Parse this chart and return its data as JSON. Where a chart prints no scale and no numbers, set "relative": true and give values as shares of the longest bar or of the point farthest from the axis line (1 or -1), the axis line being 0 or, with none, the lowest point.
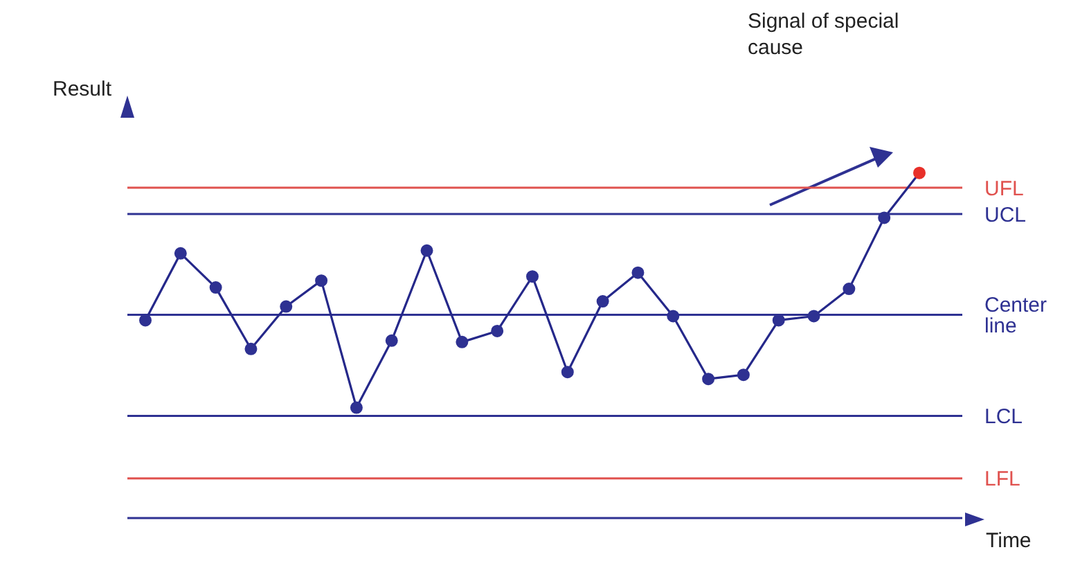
{
  "chart_data": {
    "type": "line",
    "relative": true,
    "ylabel": "Result",
    "xlabel": "Time",
    "annotations": [
      "Signal of special cause"
    ],
    "categories": [
      null,
      null,
      null,
      null,
      null,
      null,
      null,
      null,
      null,
      null,
      null,
      null,
      null,
      null,
      null,
      null,
      null,
      null,
      null,
      null,
      null,
      null,
      null
    ],
    "series": [
      {
        "color": "#25288a",
        "values": [
          0.573,
          0.767,
          0.668,
          0.49,
          0.613,
          0.688,
          0.32,
          0.514,
          0.775,
          0.51,
          0.542,
          0.7,
          0.423,
          0.628,
          0.711,
          0.585,
          0.403,
          0.415,
          0.573,
          0.585,
          0.664,
          0.87,
          1
        ],
        "colors": [
          "#2e3192",
          "#2e3192",
          "#2e3192",
          "#2e3192",
          "#2e3192",
          "#2e3192",
          "#2e3192",
          "#2e3192",
          "#2e3192",
          "#2e3192",
          "#2e3192",
          "#2e3192",
          "#2e3192",
          "#2e3192",
          "#2e3192",
          "#2e3192",
          "#2e3192",
          "#2e3192",
          "#2e3192",
          "#2e3192",
          "#2e3192",
          "#2e3192",
          "#e8302a"
        ]
      }
    ],
    "ref_lines": [
      {
        "axis": "y",
        "value": 0.957,
        "label": "UFL",
        "color": "#e0524f"
      },
      {
        "axis": "y",
        "value": 0.881,
        "label": "UCL",
        "color": "#2e3192"
      },
      {
        "axis": "y",
        "value": 0.589,
        "label": "Center line",
        "color": "#2e3192"
      },
      {
        "axis": "y",
        "value": 0.296,
        "label": "LCL",
        "color": "#2e3192"
      },
      {
        "axis": "y",
        "value": 0.115,
        "label": "LFL",
        "color": "#e0524f"
      }
    ],
    "grid": false,
    "legend": false,
    "marker": "circle",
    "line_style": "solid"
  }
}
